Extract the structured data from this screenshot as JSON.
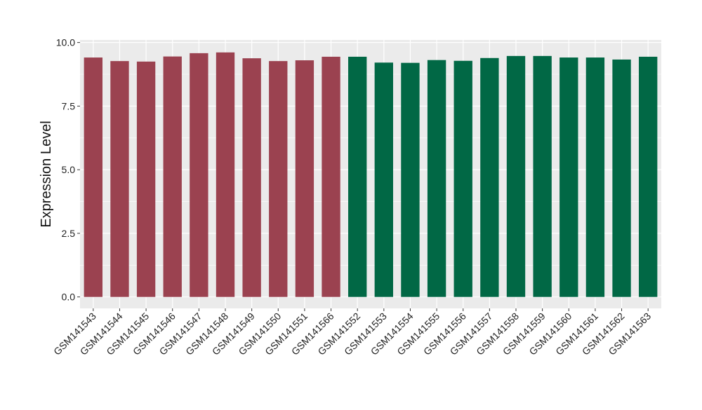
{
  "chart_data": {
    "type": "bar",
    "ylabel": "Expression Level",
    "xlabel": "",
    "ylim": [
      -0.45,
      10.1
    ],
    "yticks": [
      0.0,
      2.5,
      5.0,
      7.5,
      10.0
    ],
    "ytick_labels": [
      "0.0",
      "2.5",
      "5.0",
      "7.5",
      "10.0"
    ],
    "grid": true,
    "legend": "none",
    "categories": [
      "GSM141543",
      "GSM141544",
      "GSM141545",
      "GSM141546",
      "GSM141547",
      "GSM141548",
      "GSM141549",
      "GSM141550",
      "GSM141551",
      "GSM141566",
      "GSM141552",
      "GSM141553",
      "GSM141554",
      "GSM141555",
      "GSM141556",
      "GSM141557",
      "GSM141558",
      "GSM141559",
      "GSM141560",
      "GSM141561",
      "GSM141562",
      "GSM141563"
    ],
    "values": [
      9.41,
      9.27,
      9.25,
      9.45,
      9.58,
      9.61,
      9.38,
      9.27,
      9.3,
      9.44,
      9.44,
      9.21,
      9.2,
      9.31,
      9.28,
      9.39,
      9.47,
      9.47,
      9.41,
      9.41,
      9.33,
      9.44
    ],
    "group_colors": [
      "#9B4250",
      "#9B4250",
      "#9B4250",
      "#9B4250",
      "#9B4250",
      "#9B4250",
      "#9B4250",
      "#9B4250",
      "#9B4250",
      "#9B4250",
      "#016845",
      "#016845",
      "#016845",
      "#016845",
      "#016845",
      "#016845",
      "#016845",
      "#016845",
      "#016845",
      "#016845",
      "#016845",
      "#016845"
    ],
    "panel_background": "#EBEBEB",
    "grid_color": "#FFFFFF"
  }
}
